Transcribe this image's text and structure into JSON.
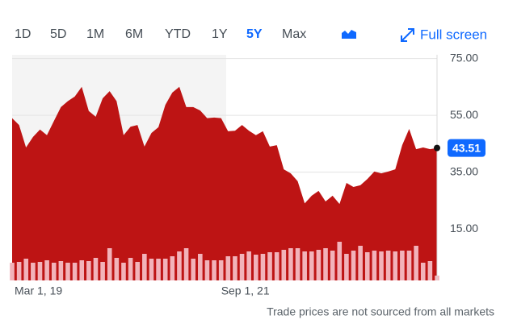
{
  "toolbar": {
    "ranges": [
      "1D",
      "5D",
      "1M",
      "6M",
      "YTD",
      "1Y",
      "5Y",
      "Max"
    ],
    "selected_index": 6,
    "full_screen": "Full screen"
  },
  "chart_data": {
    "type": "area",
    "categories": [
      "Mar 1, 19",
      null,
      null,
      null,
      null,
      null,
      null,
      null,
      null,
      null,
      null,
      null,
      null,
      null,
      null,
      null,
      null,
      null,
      null,
      null,
      null,
      null,
      null,
      null,
      null,
      null,
      null,
      null,
      null,
      null,
      "Sep 1, 21",
      null,
      null,
      null,
      null,
      null,
      null,
      null,
      null,
      null,
      null,
      null,
      null,
      null,
      null,
      null,
      null,
      null,
      null,
      null,
      null,
      null,
      null,
      null,
      null,
      null,
      null,
      null,
      null,
      null,
      null,
      null
    ],
    "series": [
      {
        "color": "#bd1414",
        "values": [
          54,
          51.6,
          43.7,
          47.4,
          50,
          48,
          53,
          57.9,
          60,
          61.6,
          65,
          56.5,
          54.5,
          61,
          63.5,
          60,
          48,
          51,
          51.6,
          44,
          48.8,
          50.8,
          58.7,
          63,
          65,
          57.9,
          57.9,
          56.7,
          54,
          54.2,
          54,
          49.4,
          49.6,
          51.6,
          49.6,
          48,
          49.4,
          44,
          44.5,
          36,
          34.6,
          31.8,
          24,
          26.7,
          28.4,
          24.7,
          26.7,
          23.8,
          31.2,
          29.8,
          30.4,
          32.6,
          35.2,
          34.6,
          35.2,
          36,
          44.5,
          50.2,
          43.1,
          43.7,
          43.1,
          43.51
        ]
      },
      {
        "type": "bar",
        "axis": "y2",
        "color": "#f2b3ba",
        "values": [
          22,
          23,
          27,
          22,
          23,
          25,
          22,
          24,
          22,
          22,
          25,
          24,
          28,
          23,
          40,
          28,
          22,
          28,
          23,
          33,
          27,
          27,
          27,
          30,
          36,
          40,
          27,
          33,
          25,
          25,
          25,
          30,
          30,
          33,
          36,
          32,
          33,
          35,
          35,
          38,
          40,
          40,
          36,
          36,
          38,
          40,
          37,
          48,
          33,
          37,
          43,
          35,
          37,
          36,
          37,
          36,
          37,
          37,
          43,
          22,
          24,
          6
        ]
      }
    ],
    "ylim": [
      -3.1,
      76.3
    ],
    "yticks": [
      {
        "value": 15,
        "label": "15.00"
      },
      {
        "value": 35,
        "label": "35.00"
      },
      {
        "value": 55,
        "label": "55.00"
      },
      {
        "value": 75,
        "label": "75.00"
      }
    ],
    "y2lim": [
      0,
      280
    ],
    "grid": true,
    "note": "Trade prices are not sourced from all markets"
  }
}
